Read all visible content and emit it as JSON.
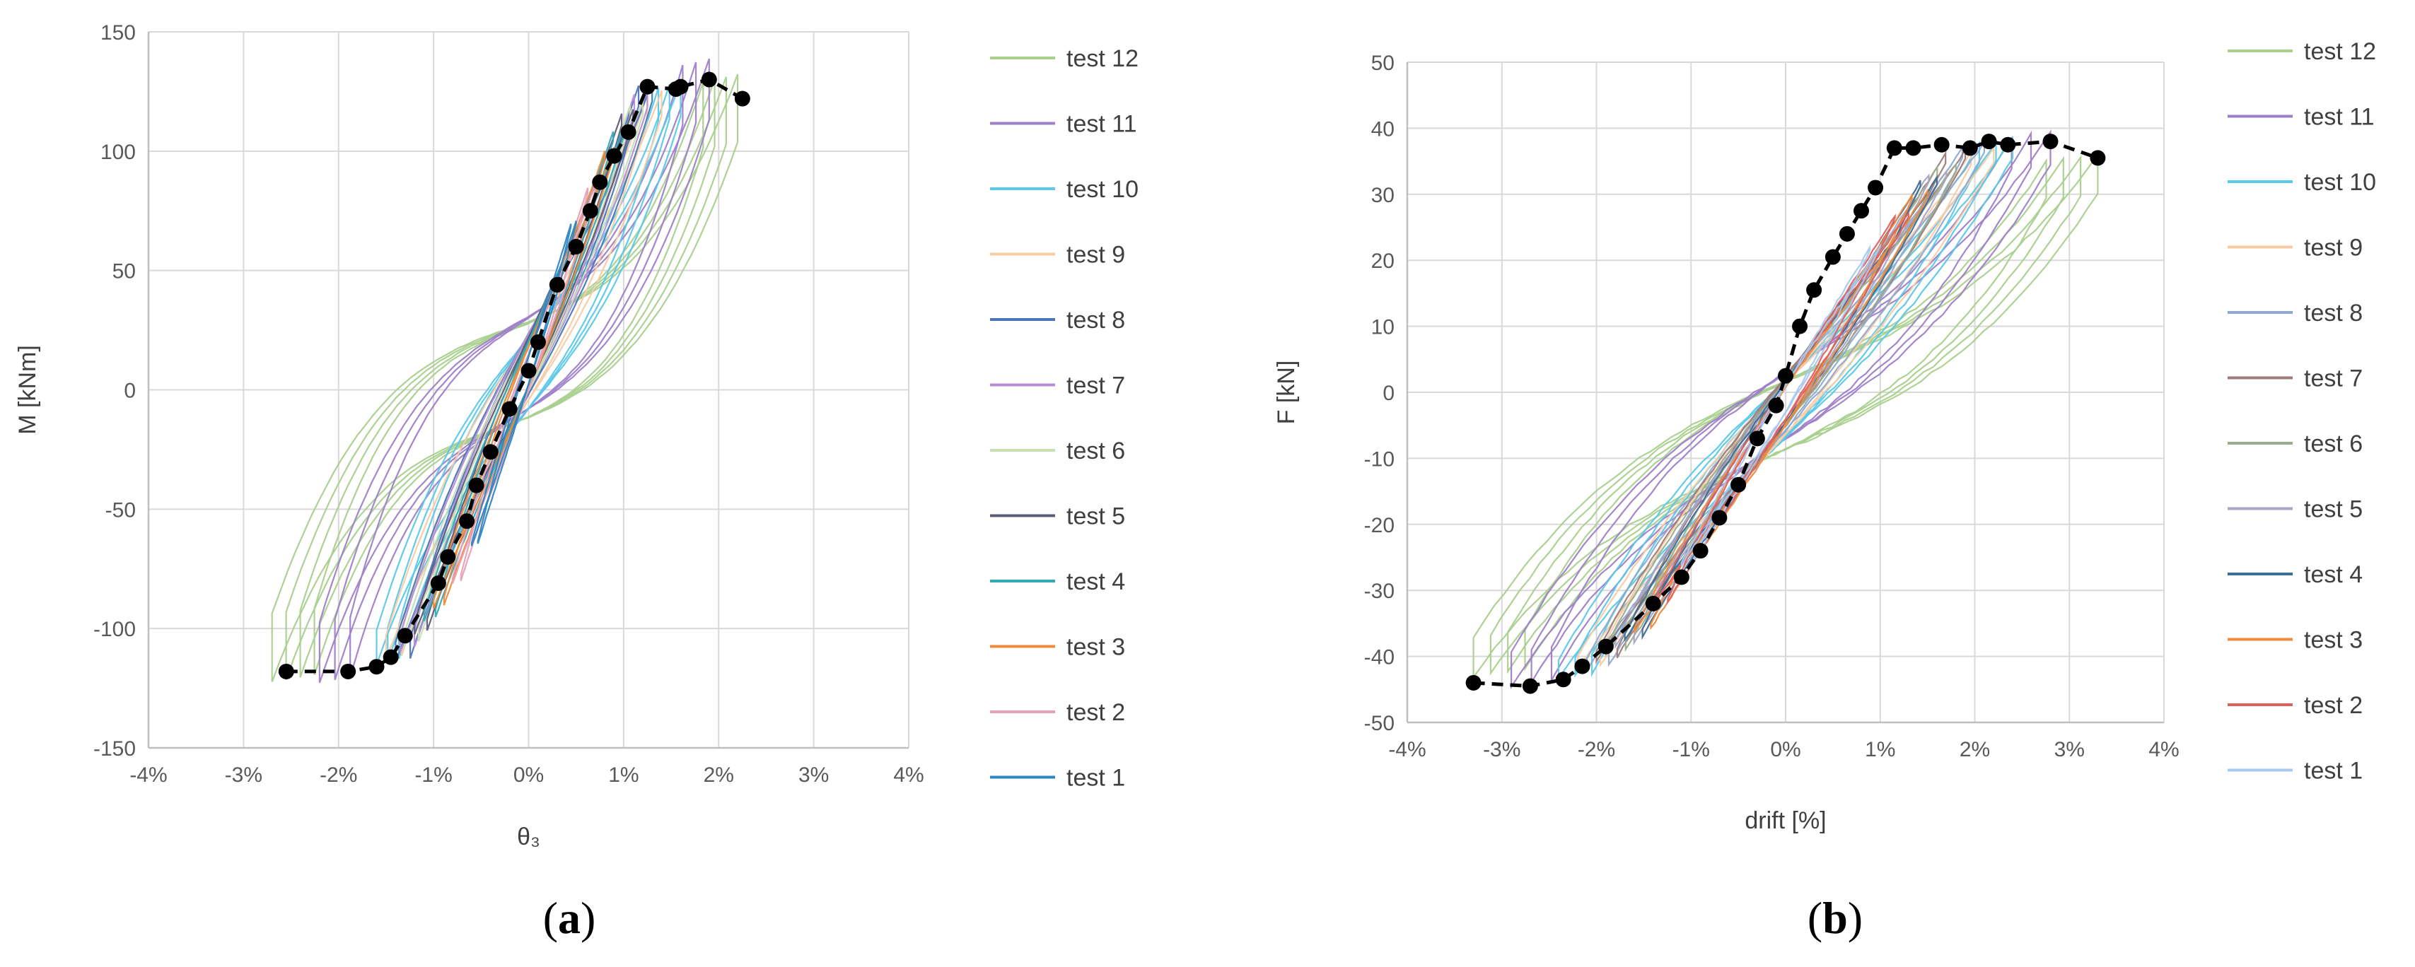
{
  "chart_data": [
    {
      "type": "line",
      "panel_label": "(a)",
      "panel_letter": "a",
      "xlabel": "θ₃",
      "ylabel": "M [kNm]",
      "xlim": [
        -0.04,
        0.04
      ],
      "ylim": [
        -150,
        150
      ],
      "x_ticks": [
        -0.04,
        -0.03,
        -0.02,
        -0.01,
        0,
        0.01,
        0.02,
        0.03,
        0.04
      ],
      "x_tick_labels": [
        "-4%",
        "-3%",
        "-2%",
        "-1%",
        "0%",
        "1%",
        "2%",
        "3%",
        "4%"
      ],
      "y_ticks": [
        -150,
        -100,
        -50,
        0,
        50,
        100,
        150
      ],
      "y_tick_labels": [
        "-150",
        "-100",
        "-50",
        "0",
        "50",
        "100",
        "150"
      ],
      "grid": true,
      "legend_position": "right",
      "series": [
        {
          "name": "test 12",
          "color": "#a9d08e",
          "peak": [
            0.022,
            118
          ],
          "neg": [
            -0.027,
            -108
          ],
          "pinch": 0.7,
          "cycles": 4
        },
        {
          "name": "test 11",
          "color": "#9e7fc9",
          "peak": [
            0.019,
            126
          ],
          "neg": [
            -0.022,
            -110
          ],
          "pinch": 0.6,
          "cycles": 3
        },
        {
          "name": "test 10",
          "color": "#5ac8e8",
          "peak": [
            0.016,
            122
          ],
          "neg": [
            -0.016,
            -108
          ],
          "pinch": 0.35,
          "cycles": 3
        },
        {
          "name": "test 9",
          "color": "#f8cba3",
          "peak": [
            0.014,
            120
          ],
          "neg": [
            -0.015,
            -108
          ],
          "pinch": 0.25,
          "cycles": 2
        },
        {
          "name": "test 8",
          "color": "#4a76b8",
          "peak": [
            0.013,
            125
          ],
          "neg": [
            -0.014,
            -110
          ],
          "pinch": 0.2,
          "cycles": 2
        },
        {
          "name": "test 7",
          "color": "#b48fd6",
          "peak": [
            0.0125,
            122
          ],
          "neg": [
            -0.0135,
            -106
          ],
          "pinch": 0.18,
          "cycles": 2
        },
        {
          "name": "test 6",
          "color": "#c9dfb4",
          "peak": [
            0.012,
            118
          ],
          "neg": [
            -0.013,
            -104
          ],
          "pinch": 0.15,
          "cycles": 2
        },
        {
          "name": "test 5",
          "color": "#5c5c7a",
          "peak": [
            0.011,
            115
          ],
          "neg": [
            -0.012,
            -100
          ],
          "pinch": 0.12,
          "cycles": 2
        },
        {
          "name": "test 4",
          "color": "#36a9b8",
          "peak": [
            0.01,
            108
          ],
          "neg": [
            -0.011,
            -95
          ],
          "pinch": 0.1,
          "cycles": 2
        },
        {
          "name": "test 3",
          "color": "#ee8a3c",
          "peak": [
            0.009,
            100
          ],
          "neg": [
            -0.01,
            -90
          ],
          "pinch": 0.1,
          "cycles": 2
        },
        {
          "name": "test 2",
          "color": "#e8a0b4",
          "peak": [
            0.007,
            85
          ],
          "neg": [
            -0.008,
            -80
          ],
          "pinch": 0.08,
          "cycles": 2
        },
        {
          "name": "test 1",
          "color": "#2e86c1",
          "peak": [
            0.005,
            70
          ],
          "neg": [
            -0.006,
            -65
          ],
          "pinch": 0.05,
          "cycles": 2
        }
      ],
      "envelope": {
        "x": [
          -0.0255,
          -0.019,
          -0.016,
          -0.0145,
          -0.013,
          -0.0095,
          -0.0085,
          -0.0065,
          -0.0055,
          -0.004,
          -0.002,
          0,
          0.001,
          0.003,
          0.005,
          0.0065,
          0.0075,
          0.009,
          0.0105,
          0.0125,
          0.0155,
          0.016,
          0.019,
          0.0225
        ],
        "y": [
          -118,
          -118,
          -116,
          -112,
          -103,
          -81,
          -70,
          -55,
          -40,
          -26,
          -8,
          8,
          20,
          44,
          60,
          75,
          87,
          98,
          108,
          127,
          126,
          127,
          130,
          122
        ]
      }
    },
    {
      "type": "line",
      "panel_label": "(b)",
      "panel_letter": "b",
      "xlabel": "drift [%]",
      "ylabel": "F [kN]",
      "xlim": [
        -0.04,
        0.04
      ],
      "ylim": [
        -50,
        50
      ],
      "x_ticks": [
        -0.04,
        -0.03,
        -0.02,
        -0.01,
        0,
        0.01,
        0.02,
        0.03,
        0.04
      ],
      "x_tick_labels": [
        "-4%",
        "-3%",
        "-2%",
        "-1%",
        "0%",
        "1%",
        "2%",
        "3%",
        "4%"
      ],
      "y_ticks": [
        -50,
        -40,
        -30,
        -20,
        -10,
        0,
        10,
        20,
        30,
        40,
        50
      ],
      "y_tick_labels": [
        "-50",
        "-40",
        "-30",
        "-20",
        "-10",
        "0",
        "10",
        "20",
        "30",
        "40",
        "50"
      ],
      "grid": true,
      "legend_position": "right",
      "series": [
        {
          "name": "test 12",
          "color": "#a9d08e",
          "peak": [
            0.033,
            33
          ],
          "neg": [
            -0.033,
            -40
          ],
          "pinch": 0.45,
          "cycles": 4
        },
        {
          "name": "test 11",
          "color": "#9e7fc9",
          "peak": [
            0.028,
            37
          ],
          "neg": [
            -0.029,
            -42
          ],
          "pinch": 0.35,
          "cycles": 3
        },
        {
          "name": "test 10",
          "color": "#5ac8e8",
          "peak": [
            0.024,
            37
          ],
          "neg": [
            -0.024,
            -42
          ],
          "pinch": 0.2,
          "cycles": 3
        },
        {
          "name": "test 9",
          "color": "#f8cba3",
          "peak": [
            0.022,
            36
          ],
          "neg": [
            -0.022,
            -41
          ],
          "pinch": 0.15,
          "cycles": 2
        },
        {
          "name": "test 8",
          "color": "#8ea9cf",
          "peak": [
            0.021,
            37
          ],
          "neg": [
            -0.021,
            -41
          ],
          "pinch": 0.12,
          "cycles": 2
        },
        {
          "name": "test 7",
          "color": "#a07a7a",
          "peak": [
            0.019,
            36
          ],
          "neg": [
            -0.02,
            -40
          ],
          "pinch": 0.1,
          "cycles": 2
        },
        {
          "name": "test 6",
          "color": "#9aae8c",
          "peak": [
            0.018,
            34
          ],
          "neg": [
            -0.019,
            -39
          ],
          "pinch": 0.1,
          "cycles": 2
        },
        {
          "name": "test 5",
          "color": "#a9a4c4",
          "peak": [
            0.017,
            33
          ],
          "neg": [
            -0.018,
            -38
          ],
          "pinch": 0.08,
          "cycles": 2
        },
        {
          "name": "test 4",
          "color": "#3b6e96",
          "peak": [
            0.016,
            32
          ],
          "neg": [
            -0.017,
            -37
          ],
          "pinch": 0.08,
          "cycles": 2
        },
        {
          "name": "test 3",
          "color": "#ee8a3c",
          "peak": [
            0.015,
            30
          ],
          "neg": [
            -0.016,
            -36
          ],
          "pinch": 0.06,
          "cycles": 2
        },
        {
          "name": "test 2",
          "color": "#e06060",
          "peak": [
            0.013,
            27
          ],
          "neg": [
            -0.014,
            -32
          ],
          "pinch": 0.05,
          "cycles": 2
        },
        {
          "name": "test 1",
          "color": "#a8c8ec",
          "peak": [
            0.01,
            22
          ],
          "neg": [
            -0.011,
            -26
          ],
          "pinch": 0.04,
          "cycles": 2
        }
      ],
      "envelope": {
        "x": [
          -0.033,
          -0.027,
          -0.0235,
          -0.0215,
          -0.019,
          -0.014,
          -0.011,
          -0.009,
          -0.007,
          -0.005,
          -0.003,
          -0.001,
          0,
          0.0015,
          0.003,
          0.005,
          0.0065,
          0.008,
          0.0095,
          0.0115,
          0.0135,
          0.0165,
          0.0195,
          0.0215,
          0.0235,
          0.028,
          0.033
        ],
        "y": [
          -44,
          -44.5,
          -43.5,
          -41.5,
          -38.5,
          -32,
          -28,
          -24,
          -19,
          -14,
          -7,
          -2,
          2.5,
          10,
          15.5,
          20.5,
          24,
          27.5,
          31,
          37,
          37,
          37.5,
          37,
          38,
          37.5,
          38,
          35.5
        ]
      }
    }
  ]
}
